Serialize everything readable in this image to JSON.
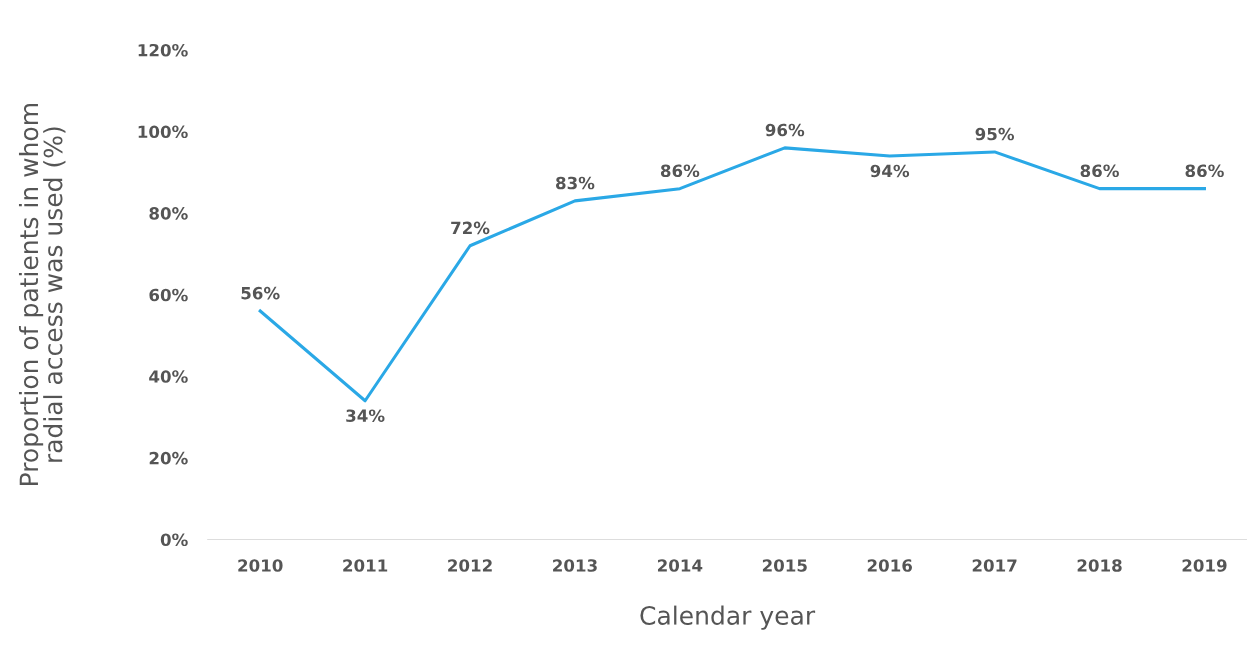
{
  "chart_data": {
    "type": "line",
    "xlabel": "Calendar year",
    "ylabel": "Proportion of patients in whom\nradial access was used (%)",
    "categories": [
      "2010",
      "2011",
      "2012",
      "2013",
      "2014",
      "2015",
      "2016",
      "2017",
      "2018",
      "2019"
    ],
    "series": [
      {
        "color": "#2aa8e6",
        "values": [
          56,
          34,
          72,
          83,
          86,
          96,
          94,
          95,
          86,
          86
        ],
        "value_labels": [
          "56%",
          "34%",
          "72%",
          "83%",
          "86%",
          "96%",
          "94%",
          "95%",
          "86%",
          "86%"
        ]
      }
    ],
    "ylim": [
      0,
      120
    ],
    "yticks": [
      {
        "value": 0,
        "label": "0%"
      },
      {
        "value": 20,
        "label": "20%"
      },
      {
        "value": 40,
        "label": "40%"
      },
      {
        "value": 60,
        "label": "60%"
      },
      {
        "value": 80,
        "label": "80%"
      },
      {
        "value": 100,
        "label": "100%"
      },
      {
        "value": 120,
        "label": "120%"
      }
    ],
    "grid": false,
    "legend": false,
    "marker": "none",
    "line_style": "solid"
  }
}
